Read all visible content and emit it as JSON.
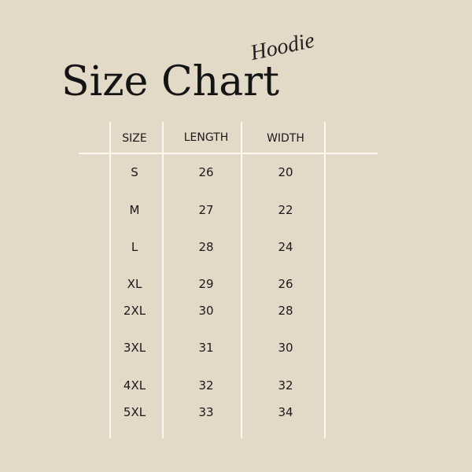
{
  "title": "Size Chart",
  "subtitle": "Hoodie",
  "colors": {
    "background": "#e2d9c7",
    "lines": "#fbf8f2",
    "text": "#1a1a1a"
  },
  "table": {
    "headers": [
      "SIZE",
      "LENGTH",
      "WIDTH"
    ],
    "rows": [
      [
        "S",
        "26",
        "20"
      ],
      [
        "M",
        "27",
        "22"
      ],
      [
        "L",
        "28",
        "24"
      ],
      [
        "XL",
        "29",
        "26"
      ],
      [
        "2XL",
        "30",
        "28"
      ],
      [
        "3XL",
        "31",
        "30"
      ],
      [
        "4XL",
        "32",
        "32"
      ],
      [
        "5XL",
        "33",
        "34"
      ]
    ]
  }
}
